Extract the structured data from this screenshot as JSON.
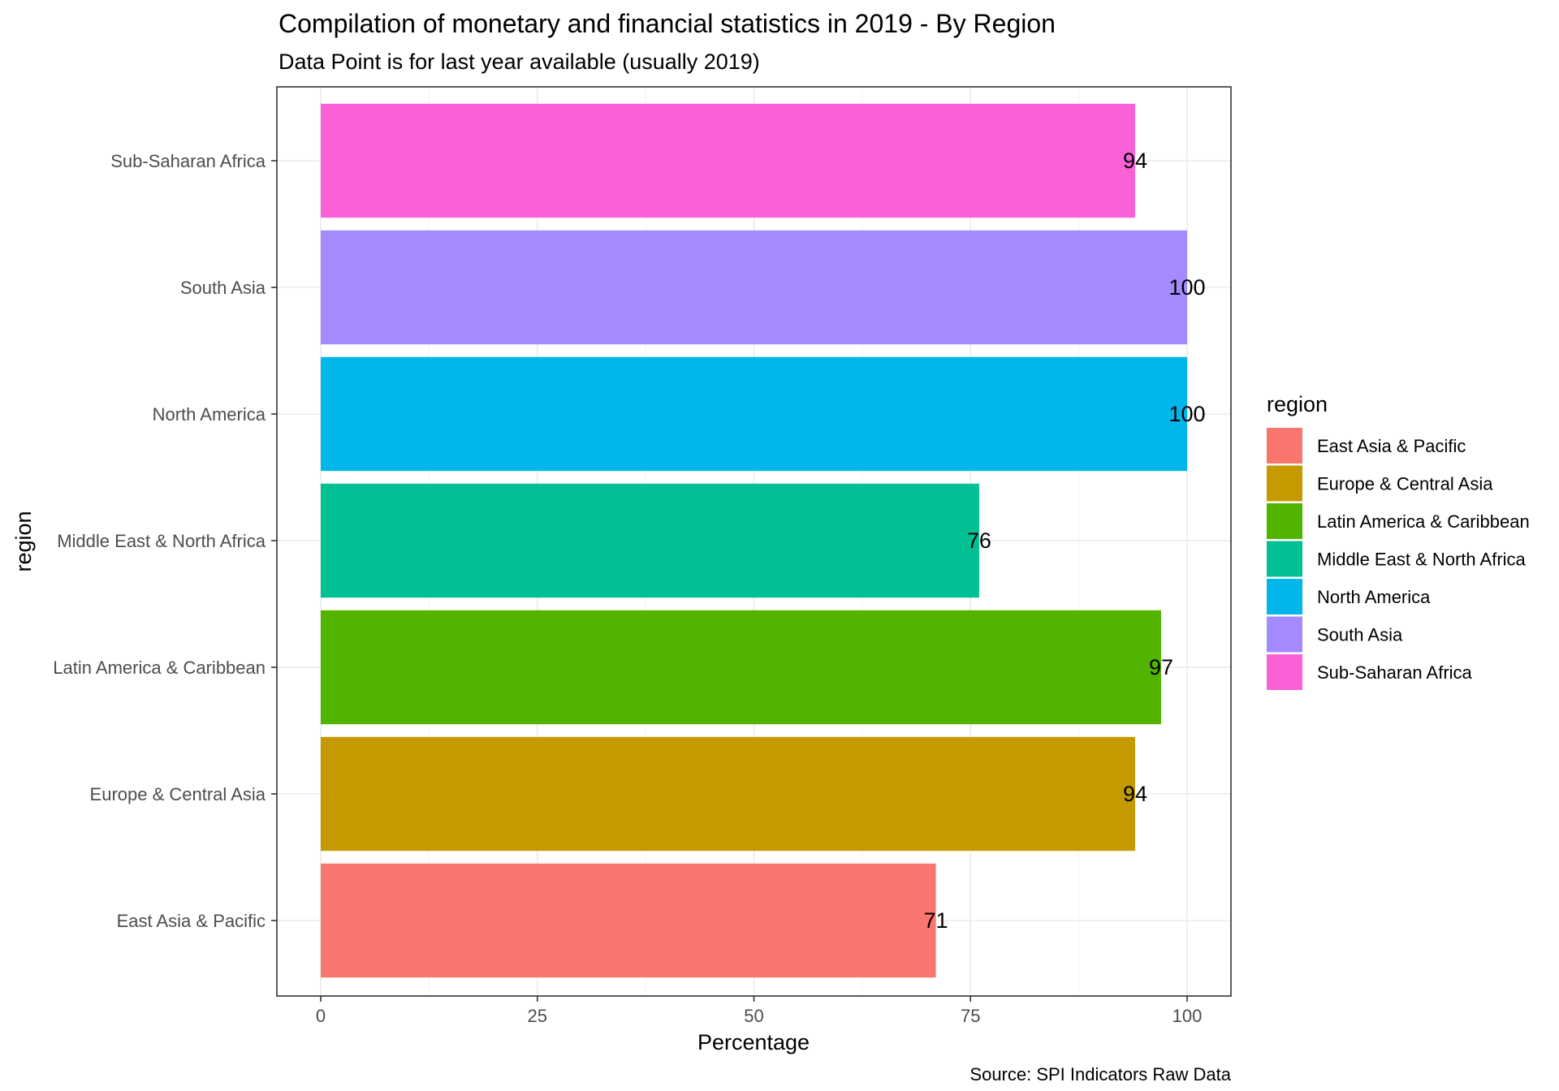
{
  "chart_data": {
    "type": "bar",
    "orientation": "horizontal",
    "title": "Compilation of monetary and financial statistics in 2019 - By Region",
    "subtitle": "Data Point is for last year available (usually 2019)",
    "xlabel": "Percentage",
    "ylabel": "region",
    "caption": "Source: SPI Indicators Raw Data",
    "xlim": [
      0,
      100
    ],
    "x_ticks": [
      0,
      25,
      50,
      75,
      100
    ],
    "grid": true,
    "legend_title": "region",
    "legend_position": "right",
    "categories": [
      "East Asia & Pacific",
      "Europe & Central Asia",
      "Latin America & Caribbean",
      "Middle East & North Africa",
      "North America",
      "South Asia",
      "Sub-Saharan Africa"
    ],
    "values": [
      71,
      94,
      97,
      76,
      100,
      100,
      94
    ],
    "data_labels": [
      "71",
      "94",
      "97",
      "76",
      "100",
      "100",
      "94"
    ],
    "colors": [
      "#F8766D",
      "#C49A00",
      "#53B400",
      "#00C094",
      "#00B6EB",
      "#A58AFF",
      "#FB61D7"
    ]
  }
}
